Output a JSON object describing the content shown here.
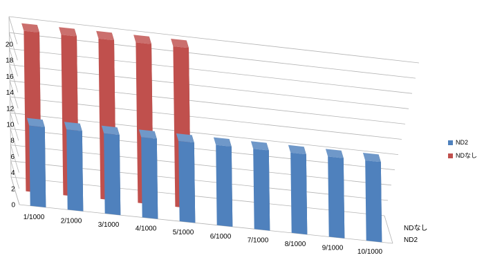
{
  "chart_data": {
    "type": "bar",
    "categories": [
      "1/1000",
      "2/1000",
      "3/1000",
      "4/1000",
      "5/1000",
      "6/1000",
      "7/1000",
      "8/1000",
      "9/1000",
      "10/1000"
    ],
    "series": [
      {
        "name": "ND2",
        "values": [
          10,
          10,
          10,
          10,
          10,
          10,
          10,
          10,
          10,
          10
        ],
        "color": "#4f81bd"
      },
      {
        "name": "NDなし",
        "values": [
          20,
          20,
          20,
          20,
          20,
          null,
          null,
          null,
          null,
          null
        ],
        "color": "#c0504d"
      }
    ],
    "depth_labels": [
      "NDなし",
      "ND2"
    ],
    "yticks": [
      0,
      2,
      4,
      6,
      8,
      10,
      12,
      14,
      16,
      18,
      20
    ],
    "ylim": [
      0,
      20
    ],
    "grid": true,
    "legend_position": "right"
  }
}
